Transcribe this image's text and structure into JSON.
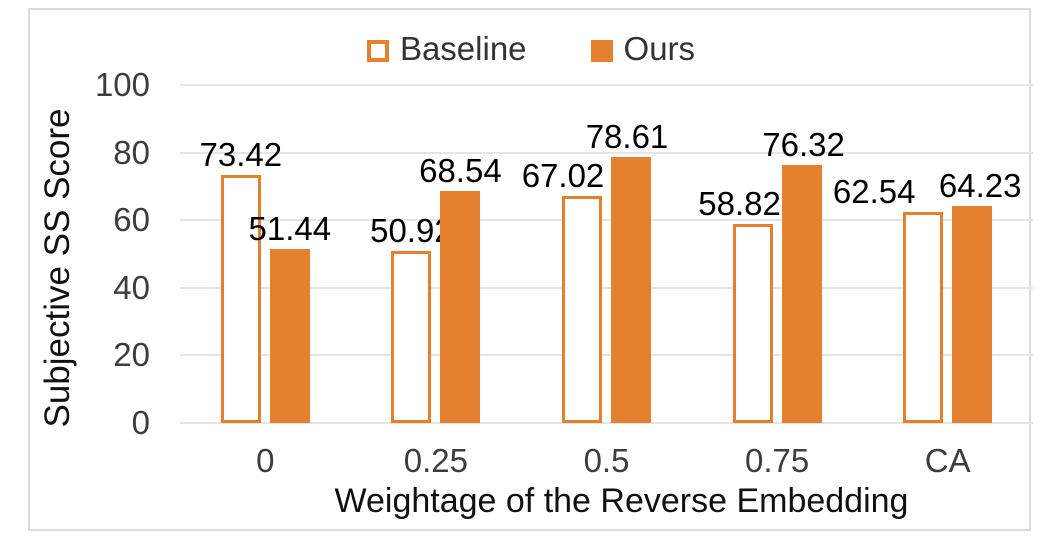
{
  "chart_data": {
    "type": "bar",
    "categories": [
      "0",
      "0.25",
      "0.5",
      "0.75",
      "CA"
    ],
    "series": [
      {
        "name": "Baseline",
        "style": "hollow",
        "values": [
          73.42,
          50.92,
          67.02,
          58.82,
          62.54
        ]
      },
      {
        "name": "Ours",
        "style": "solid",
        "values": [
          51.44,
          68.54,
          78.61,
          76.32,
          64.23
        ]
      }
    ],
    "xlabel": "Weightage of the Reverse Embedding",
    "ylabel": "Subjective SS Score",
    "ylim": [
      0,
      100
    ],
    "yticks": [
      0,
      20,
      40,
      60,
      80,
      100
    ],
    "grid": true,
    "legend_position": "top-center",
    "label_dx": [
      [
        0,
        0
      ],
      [
        0,
        0
      ],
      [
        -19,
        -4
      ],
      [
        -13,
        2
      ],
      [
        -49,
        8
      ]
    ]
  },
  "colors": {
    "accent_orange": "#e5802f",
    "gridline": "#e5e5e5",
    "frame_border": "#dbdbdb",
    "tick_text": "#3d3d3d",
    "legend_text": "#333333",
    "label_text": "#000000"
  }
}
